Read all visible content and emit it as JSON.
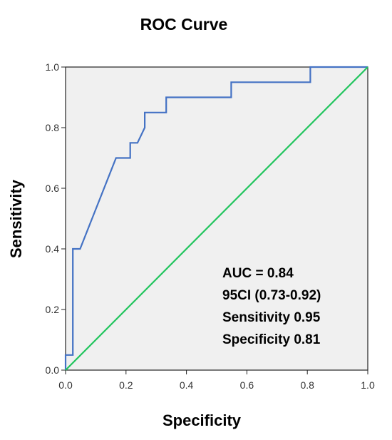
{
  "chart_data": {
    "type": "line",
    "title": "ROC Curve",
    "xlabel": "Specificity",
    "ylabel": "Sensitivity",
    "xlim": [
      0,
      1
    ],
    "ylim": [
      0,
      1
    ],
    "x_ticks": [
      "0.0",
      "0.2",
      "0.4",
      "0.6",
      "0.8",
      "1.0"
    ],
    "y_ticks": [
      "0.0",
      "0.2",
      "0.4",
      "0.6",
      "0.8",
      "1.0"
    ],
    "grid": false,
    "series": [
      {
        "color": "#4472c4",
        "points": [
          [
            0.0,
            0.0
          ],
          [
            0.0,
            0.05
          ],
          [
            0.024,
            0.05
          ],
          [
            0.024,
            0.4
          ],
          [
            0.048,
            0.4
          ],
          [
            0.167,
            0.7
          ],
          [
            0.214,
            0.7
          ],
          [
            0.214,
            0.75
          ],
          [
            0.238,
            0.75
          ],
          [
            0.262,
            0.8
          ],
          [
            0.262,
            0.85
          ],
          [
            0.333,
            0.85
          ],
          [
            0.333,
            0.9
          ],
          [
            0.548,
            0.9
          ],
          [
            0.548,
            0.95
          ],
          [
            0.81,
            0.95
          ],
          [
            0.81,
            1.0
          ],
          [
            1.0,
            1.0
          ]
        ]
      },
      {
        "color": "#22c55e",
        "points": [
          [
            0.0,
            0.0
          ],
          [
            1.0,
            1.0
          ]
        ]
      }
    ],
    "annotations": [
      "AUC = 0.84",
      "95CI (0.73-0.92)",
      "Sensitivity 0.95",
      "Specificity 0.81"
    ],
    "plot_background": "#f0f0f0"
  }
}
